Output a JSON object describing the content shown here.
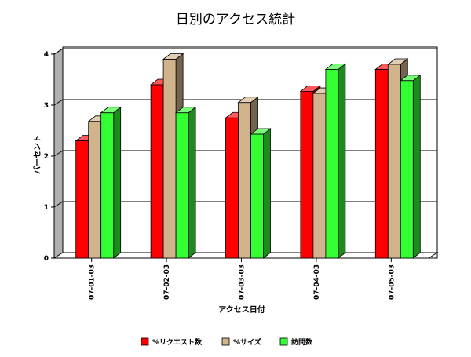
{
  "chart_data": {
    "type": "bar",
    "title": "日別のアクセス統計",
    "xlabel": "アクセス日付",
    "ylabel": "パーセント",
    "categories": [
      "07-01-03",
      "07-02-03",
      "07-03-03",
      "07-04-03",
      "07-05-03"
    ],
    "series": [
      {
        "name": "%リクエスト数",
        "color": "#ff0000",
        "values": [
          2.3,
          3.4,
          2.75,
          3.27,
          3.7
        ]
      },
      {
        "name": "%サイズ",
        "color": "#d2b48c",
        "values": [
          2.68,
          3.9,
          3.05,
          3.23,
          3.8
        ]
      },
      {
        "name": "訪問数",
        "color": "#33ff33",
        "values": [
          2.85,
          2.85,
          2.43,
          3.7,
          3.48
        ]
      }
    ],
    "ylim": [
      0,
      4
    ],
    "yticks": [
      "0",
      "1",
      "2",
      "3",
      "4"
    ],
    "grid": true,
    "legend_position": "bottom"
  }
}
